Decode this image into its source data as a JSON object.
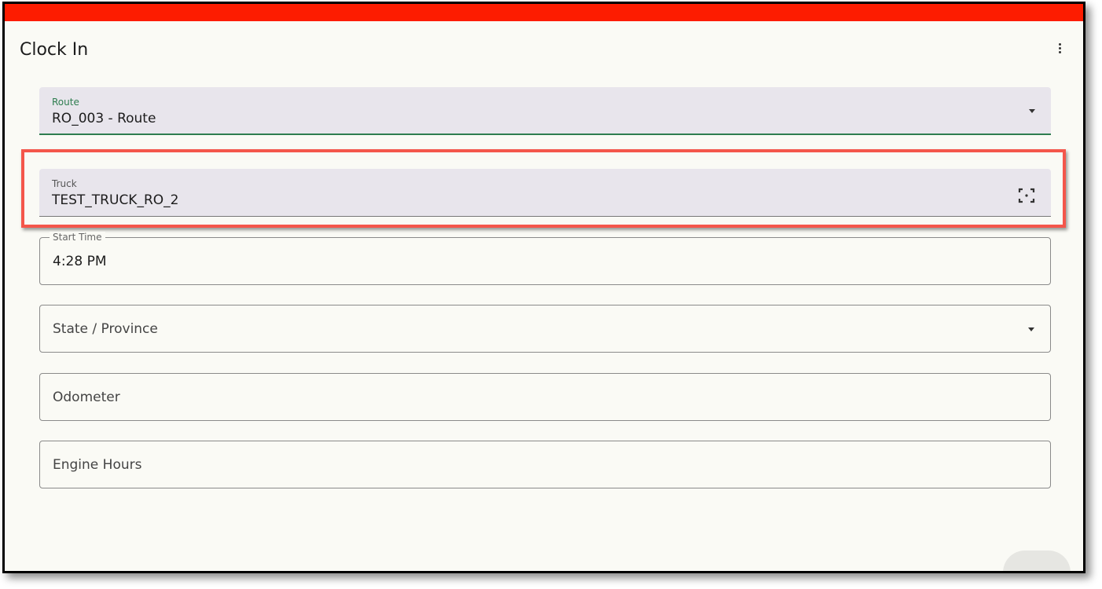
{
  "header": {
    "title": "Clock In",
    "menu_icon": "more-vert-icon"
  },
  "colors": {
    "status_bar": "#fd1c00",
    "highlight": "#f4564b",
    "focus": "#2e7d4f"
  },
  "form": {
    "route": {
      "label": "Route",
      "value": "RO_003 - Route"
    },
    "truck": {
      "label": "Truck",
      "value": "TEST_TRUCK_RO_2",
      "icon": "scan-icon"
    },
    "start_time": {
      "label": "Start Time",
      "value": "4:28 PM"
    },
    "state": {
      "placeholder": "State / Province"
    },
    "odometer": {
      "placeholder": "Odometer"
    },
    "engine_hours": {
      "placeholder": "Engine Hours"
    }
  }
}
